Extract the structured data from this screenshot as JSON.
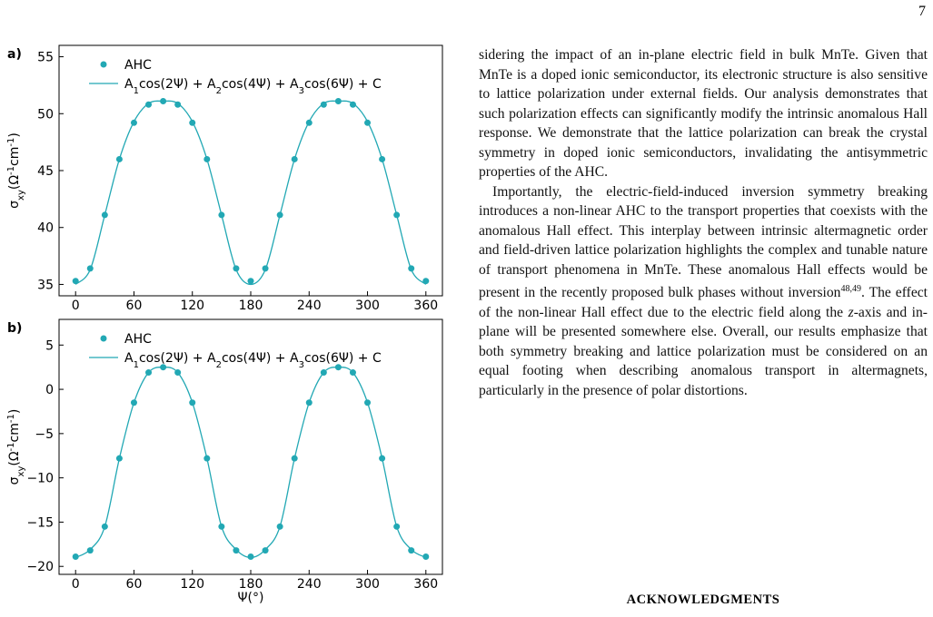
{
  "page_number": "7",
  "chart_data": [
    {
      "type": "scatter",
      "panel_label": "a)",
      "ylabel": [
        "σ",
        "xy",
        "(Ω",
        "-1",
        "cm",
        "-1",
        ")"
      ],
      "x": [
        0,
        15,
        30,
        45,
        60,
        75,
        90,
        105,
        120,
        135,
        150,
        165,
        180,
        195,
        210,
        225,
        240,
        255,
        270,
        285,
        300,
        315,
        330,
        345,
        360
      ],
      "xlim": [
        -17,
        377
      ],
      "xticks": [
        0,
        60,
        120,
        180,
        240,
        300,
        360
      ],
      "ylim": [
        34.0,
        56.0
      ],
      "yticks": [
        35,
        40,
        45,
        50,
        55
      ],
      "series": [
        {
          "name": [
            "AHC"
          ],
          "type": "scatter",
          "color": "#22a8b4",
          "values": [
            35.3,
            36.4,
            41.1,
            46.0,
            49.2,
            50.8,
            51.1,
            50.8,
            49.2,
            46.0,
            41.1,
            36.4,
            35.3,
            36.4,
            41.1,
            46.0,
            49.2,
            50.8,
            51.1,
            50.8,
            49.2,
            46.0,
            41.1,
            36.4,
            35.3
          ]
        },
        {
          "name": [
            "A",
            "1",
            "cos(2Ψ) + A",
            "2",
            "cos(4Ψ) + A",
            "3",
            "cos(6Ψ) + C"
          ],
          "type": "line",
          "color": "#22a8b4",
          "values": [
            35.0,
            36.3,
            41.1,
            46.0,
            49.3,
            50.9,
            51.1,
            50.9,
            49.3,
            46.0,
            41.1,
            36.3,
            35.0,
            36.3,
            41.1,
            46.0,
            49.3,
            50.9,
            51.1,
            50.9,
            49.3,
            46.0,
            41.1,
            36.3,
            35.0
          ]
        }
      ]
    },
    {
      "type": "scatter",
      "panel_label": "b)",
      "ylabel": [
        "σ",
        "xy",
        "(Ω",
        "-1",
        "cm",
        "-1",
        ")"
      ],
      "xlabel": "Ψ(°)",
      "x": [
        0,
        15,
        30,
        45,
        60,
        75,
        90,
        105,
        120,
        135,
        150,
        165,
        180,
        195,
        210,
        225,
        240,
        255,
        270,
        285,
        300,
        315,
        330,
        345,
        360
      ],
      "xlim": [
        -17,
        377
      ],
      "xticks": [
        0,
        60,
        120,
        180,
        240,
        300,
        360
      ],
      "ylim": [
        -20.9,
        7.9
      ],
      "yticks": [
        {
          "value": -20,
          "label": "−20"
        },
        {
          "value": -15,
          "label": "−15"
        },
        {
          "value": -10,
          "label": "−10"
        },
        {
          "value": -5,
          "label": "−5"
        },
        0,
        5
      ],
      "series": [
        {
          "name": [
            "AHC"
          ],
          "type": "scatter",
          "color": "#22a8b4",
          "values": [
            -18.9,
            -18.2,
            -15.5,
            -7.8,
            -1.5,
            1.9,
            2.5,
            1.9,
            -1.5,
            -7.8,
            -15.5,
            -18.2,
            -18.9,
            -18.2,
            -15.5,
            -7.8,
            -1.5,
            1.9,
            2.5,
            1.9,
            -1.5,
            -7.8,
            -15.5,
            -18.2,
            -18.9
          ]
        },
        {
          "name": [
            "A",
            "1",
            "cos(2Ψ) + A",
            "2",
            "cos(4Ψ) + A",
            "3",
            "cos(6Ψ) + C"
          ],
          "type": "line",
          "color": "#22a8b4",
          "values": [
            -19.0,
            -18.1,
            -15.5,
            -7.8,
            -1.5,
            1.9,
            2.5,
            1.9,
            -1.5,
            -7.8,
            -15.5,
            -18.1,
            -19.0,
            -18.1,
            -15.5,
            -7.8,
            -1.5,
            1.9,
            2.5,
            1.9,
            -1.5,
            -7.8,
            -15.5,
            -18.1,
            -19.0
          ]
        }
      ]
    }
  ],
  "body": {
    "paragraph_1": "sidering the impact of an in-plane electric field in bulk MnTe. Given that MnTe is a doped ionic semiconductor, its electronic structure is also sensitive to lattice polarization under external fields. Our analysis demonstrates that such polarization effects can significantly modify the intrinsic anomalous Hall response. We demonstrate that the lattice polarization can break the crystal symmetry in doped ionic semiconductors, invalidating the antisymmetric properties of the AHC.",
    "paragraph_2": [
      "Importantly, the electric-field-induced inversion symmetry breaking introduces a non-linear AHC to the transport properties that coexists with the anomalous Hall effect. This interplay between intrinsic altermagnetic order and field-driven lattice polarization highlights the complex and tunable nature of transport phenomena in MnTe. These anomalous Hall effects would be present in the recently proposed bulk phases without inversion",
      "48,49",
      ". The effect of the non-linear Hall effect due to the electric field along the ",
      "z",
      "-axis and in-plane will be presented somewhere else. Overall, our results emphasize that both symmetry breaking and lattice polarization must be considered on an equal footing when describing anomalous transport in altermagnets, particularly in the presence of polar distortions."
    ]
  },
  "heading": "ACKNOWLEDGMENTS"
}
